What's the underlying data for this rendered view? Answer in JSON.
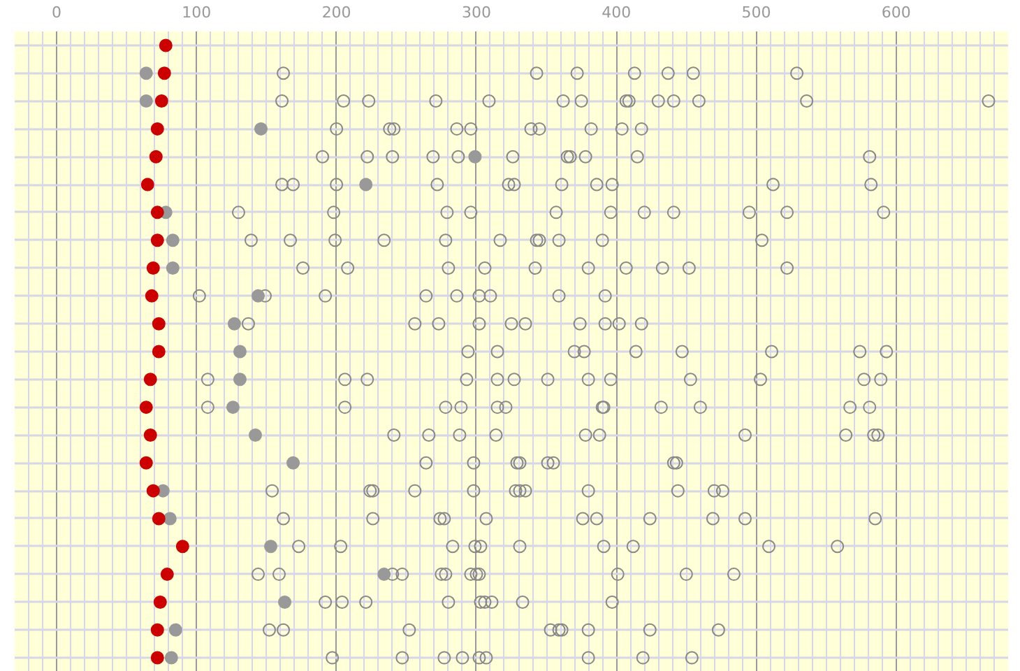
{
  "chart_data": {
    "type": "scatter",
    "orientation": "horizontal",
    "grid": true,
    "tick_labels": "x",
    "categories": [
      null,
      null,
      null,
      null,
      null,
      null,
      null,
      null,
      null,
      null,
      null,
      null,
      null,
      null,
      null,
      null,
      null,
      null,
      null,
      null,
      null,
      null,
      null
    ],
    "xlim": [
      -30,
      680
    ],
    "xticks": [
      0,
      100,
      200,
      300,
      400,
      500,
      600
    ],
    "series": [
      {
        "color": "#cc0000",
        "marker": "circle",
        "values": [
          78,
          77,
          75,
          72,
          71,
          65,
          72,
          72,
          69,
          68,
          73,
          73,
          67,
          64,
          67,
          64,
          69,
          73,
          90,
          79,
          74,
          72,
          72
        ]
      },
      {
        "color": "#999999",
        "marker": "circle",
        "values": [
          null,
          64,
          64,
          146,
          299,
          221,
          78,
          83,
          83,
          144,
          127,
          131,
          131,
          126,
          142,
          169,
          76,
          81,
          153,
          234,
          163,
          85,
          82
        ]
      },
      {
        "color": "#888888",
        "marker": "circle_open",
        "values": [
          null,
          162,
          161,
          200,
          190,
          161,
          130,
          139,
          176,
          102,
          137,
          294,
          108,
          108,
          241,
          264,
          154,
          162,
          173,
          144,
          192,
          152,
          197
        ]
      },
      {
        "color": "#888888",
        "marker": "circle_open",
        "values": [
          null,
          343,
          205,
          238,
          222,
          169,
          198,
          167,
          208,
          149,
          256,
          315,
          206,
          206,
          266,
          298,
          224,
          226,
          203,
          159,
          204,
          162,
          247
        ]
      },
      {
        "color": "#888888",
        "marker": "circle_open",
        "values": [
          null,
          372,
          223,
          241,
          240,
          200,
          279,
          199,
          280,
          192,
          273,
          370,
          222,
          278,
          288,
          329,
          226,
          274,
          283,
          240,
          221,
          252,
          277
        ]
      },
      {
        "color": "#888888",
        "marker": "circle_open",
        "values": [
          null,
          413,
          271,
          286,
          269,
          272,
          296,
          234,
          306,
          264,
          302,
          377,
          293,
          289,
          314,
          331,
          256,
          277,
          299,
          247,
          280,
          353,
          290
        ]
      },
      {
        "color": "#888888",
        "marker": "circle_open",
        "values": [
          null,
          437,
          309,
          296,
          287,
          323,
          357,
          278,
          342,
          286,
          325,
          414,
          315,
          315,
          378,
          351,
          298,
          307,
          303,
          275,
          303,
          359,
          302
        ]
      },
      {
        "color": "#888888",
        "marker": "circle_open",
        "values": [
          null,
          455,
          362,
          339,
          326,
          327,
          396,
          317,
          380,
          302,
          335,
          447,
          327,
          321,
          388,
          355,
          328,
          376,
          331,
          278,
          306,
          361,
          307
        ]
      },
      {
        "color": "#888888",
        "marker": "circle_open",
        "values": [
          null,
          529,
          375,
          345,
          365,
          361,
          420,
          343,
          407,
          310,
          374,
          511,
          351,
          390,
          492,
          441,
          331,
          386,
          391,
          296,
          311,
          380,
          380
        ]
      },
      {
        "color": "#888888",
        "marker": "circle_open",
        "values": [
          null,
          null,
          407,
          382,
          367,
          386,
          441,
          345,
          433,
          359,
          392,
          574,
          380,
          391,
          564,
          443,
          335,
          424,
          412,
          300,
          333,
          424,
          419
        ]
      },
      {
        "color": "#888888",
        "marker": "circle_open",
        "values": [
          null,
          null,
          409,
          404,
          378,
          397,
          495,
          359,
          452,
          392,
          402,
          593,
          396,
          432,
          584,
          null,
          380,
          469,
          509,
          302,
          397,
          473,
          454
        ]
      },
      {
        "color": "#888888",
        "marker": "circle_open",
        "values": [
          null,
          null,
          430,
          418,
          415,
          512,
          522,
          390,
          522,
          null,
          418,
          null,
          453,
          460,
          587,
          null,
          444,
          492,
          558,
          401,
          null,
          null,
          null
        ]
      },
      {
        "color": "#888888",
        "marker": "circle_open",
        "values": [
          null,
          null,
          441,
          null,
          581,
          582,
          591,
          504,
          null,
          null,
          null,
          null,
          503,
          567,
          null,
          null,
          470,
          585,
          null,
          450,
          null,
          null,
          null
        ]
      },
      {
        "color": "#888888",
        "marker": "circle_open",
        "values": [
          null,
          null,
          459,
          null,
          null,
          null,
          null,
          null,
          null,
          null,
          null,
          null,
          577,
          581,
          null,
          null,
          476,
          null,
          null,
          484,
          null,
          null,
          null
        ]
      },
      {
        "color": "#888888",
        "marker": "circle_open",
        "values": [
          null,
          null,
          536,
          null,
          null,
          null,
          null,
          null,
          null,
          null,
          null,
          null,
          589,
          null,
          null,
          null,
          null,
          null,
          null,
          null,
          null,
          null,
          null
        ]
      },
      {
        "color": "#888888",
        "marker": "circle_open",
        "values": [
          null,
          null,
          666,
          null,
          null,
          null,
          null,
          null,
          null,
          null,
          null,
          null,
          null,
          null,
          null,
          null,
          null,
          null,
          null,
          null,
          null,
          null,
          null
        ]
      }
    ]
  }
}
